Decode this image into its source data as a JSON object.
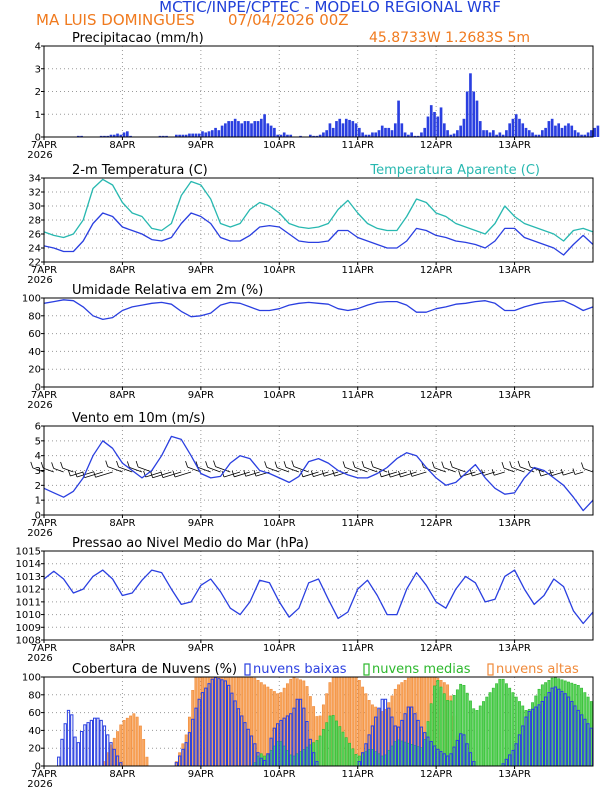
{
  "header": {
    "title": "MCTIC/INPE/CPTEC - MODELO REGIONAL WRF",
    "location": "MA LUIS DOMINGUES",
    "date": "07/04/2026 00Z",
    "coords": "45.8733W 1.2683S 5m"
  },
  "colors": {
    "blue": "#2a3fe0",
    "teal": "#28b8b0",
    "orange": "#f08a3a",
    "green": "#2db82d",
    "black": "#000000"
  },
  "x_axis": {
    "labels": [
      "7APR",
      "8APR",
      "9APR",
      "10APR",
      "11APR",
      "12APR",
      "13APR"
    ],
    "year": "2026",
    "hours_per_day": 24,
    "total_hours": 168
  },
  "chart_data": [
    {
      "type": "bar",
      "id": "precip",
      "title": "Precipitacao (mm/h)",
      "ylim": [
        0,
        4
      ],
      "yticks": [
        0,
        1,
        2,
        3,
        4
      ],
      "unit_step_hours": 1,
      "values": [
        0,
        0,
        0,
        0,
        0,
        0,
        0,
        0,
        0,
        0,
        0.05,
        0.05,
        0,
        0,
        0,
        0,
        0,
        0.05,
        0.05,
        0.05,
        0.1,
        0.1,
        0.15,
        0.1,
        0.2,
        0.25,
        0.05,
        0,
        0,
        0,
        0,
        0,
        0,
        0,
        0,
        0.05,
        0.05,
        0.05,
        0,
        0,
        0.1,
        0.1,
        0.1,
        0.1,
        0.15,
        0.15,
        0.15,
        0.15,
        0.25,
        0.2,
        0.25,
        0.3,
        0.4,
        0.3,
        0.5,
        0.6,
        0.7,
        0.7,
        0.8,
        0.7,
        0.6,
        0.7,
        0.7,
        0.6,
        0.7,
        0.7,
        0.8,
        1,
        0.6,
        0.5,
        0.4,
        0.1,
        0.1,
        0.2,
        0.1,
        0.1,
        0,
        0,
        0.05,
        0,
        0,
        0.1,
        0.05,
        0.05,
        0.1,
        0.2,
        0.3,
        0.6,
        0.4,
        0.7,
        0.8,
        0.6,
        0.8,
        0.75,
        0.7,
        0.6,
        0.4,
        0.2,
        0.1,
        0.1,
        0.2,
        0.2,
        0.3,
        0.5,
        0.4,
        0.4,
        0.3,
        0.6,
        1.6,
        0.6,
        0.2,
        0.1,
        0.2,
        0.05,
        0.05,
        0.2,
        0.4,
        0.9,
        1.4,
        1.1,
        0.9,
        1.3,
        0.6,
        0.3,
        0.1,
        0.15,
        0.3,
        0.5,
        0.8,
        2.0,
        2.8,
        2.0,
        1.6,
        0.7,
        0.3,
        0.3,
        0.2,
        0.3,
        0.1,
        0.2,
        0.1,
        0.3,
        0.6,
        0.8,
        1.0,
        0.8,
        0.6,
        0.4,
        0.3,
        0.2,
        0.1,
        0.1,
        0.3,
        0.4,
        0.7,
        0.8,
        0.5,
        0.6,
        0.4,
        0.5,
        0.6,
        0.5,
        0.3,
        0.2,
        0.1,
        0.1,
        0.2,
        0.3,
        0.4,
        0.5
      ]
    },
    {
      "type": "line",
      "id": "temp",
      "title": "2-m Temperatura (C)",
      "subtitle": "Temperatura Aparente (C)",
      "ylim": [
        22,
        34
      ],
      "yticks": [
        22,
        24,
        26,
        28,
        30,
        32,
        34
      ],
      "series": [
        {
          "name": "Temperatura",
          "color": "blue",
          "x": [
            0,
            3,
            6,
            9,
            12,
            15,
            18,
            21,
            24,
            27,
            30,
            33,
            36,
            39,
            42,
            45,
            48,
            51,
            54,
            57,
            60,
            63,
            66,
            69,
            72,
            75,
            78,
            81,
            84,
            87,
            90,
            93,
            96,
            99,
            102,
            105,
            108,
            111,
            114,
            117,
            120,
            123,
            126,
            129,
            132,
            135,
            138,
            141,
            144,
            147,
            150,
            153,
            156,
            159,
            162,
            165,
            168
          ],
          "values": [
            24.3,
            24.0,
            23.5,
            23.5,
            25.0,
            27.5,
            29.0,
            28.5,
            27.0,
            26.5,
            26.0,
            25.2,
            25.0,
            25.5,
            27.5,
            29.0,
            28.5,
            27.5,
            25.5,
            25.0,
            25.0,
            25.8,
            27.0,
            27.2,
            27.0,
            26.0,
            25.0,
            24.8,
            24.8,
            25.0,
            26.5,
            26.5,
            25.5,
            25.0,
            24.5,
            24.0,
            24.0,
            25.0,
            26.8,
            26.5,
            25.8,
            25.5,
            25.0,
            24.8,
            24.5,
            24.0,
            25.0,
            26.8,
            26.8,
            25.5,
            25.0,
            24.5,
            24.0,
            23.0,
            24.5,
            25.8,
            24.5
          ]
        },
        {
          "name": "Temperatura Aparente",
          "color": "teal",
          "x": [
            0,
            3,
            6,
            9,
            12,
            15,
            18,
            21,
            24,
            27,
            30,
            33,
            36,
            39,
            42,
            45,
            48,
            51,
            54,
            57,
            60,
            63,
            66,
            69,
            72,
            75,
            78,
            81,
            84,
            87,
            90,
            93,
            96,
            99,
            102,
            105,
            108,
            111,
            114,
            117,
            120,
            123,
            126,
            129,
            132,
            135,
            138,
            141,
            144,
            147,
            150,
            153,
            156,
            159,
            162,
            165,
            168
          ],
          "values": [
            26.3,
            25.8,
            25.5,
            26.0,
            28.0,
            32.5,
            33.8,
            33.0,
            30.5,
            29.0,
            28.5,
            26.8,
            26.5,
            27.5,
            31.5,
            33.5,
            33.0,
            31.0,
            27.5,
            27.0,
            27.5,
            29.5,
            30.5,
            30.0,
            29.0,
            27.5,
            27.0,
            26.8,
            27.0,
            27.5,
            29.5,
            30.8,
            29.0,
            27.5,
            26.8,
            26.5,
            26.5,
            28.5,
            31.0,
            30.5,
            29.0,
            28.5,
            27.5,
            27.0,
            26.5,
            26.0,
            27.5,
            30.0,
            28.5,
            27.5,
            27.0,
            26.5,
            26.0,
            25.0,
            26.5,
            26.8,
            26.3
          ]
        }
      ]
    },
    {
      "type": "line",
      "id": "humidity",
      "title": "Umidade Relativa em 2m (%)",
      "ylim": [
        0,
        100
      ],
      "yticks": [
        0,
        20,
        40,
        60,
        80,
        100
      ],
      "series": [
        {
          "name": "Umidade",
          "color": "blue",
          "x": [
            0,
            3,
            6,
            9,
            12,
            15,
            18,
            21,
            24,
            27,
            30,
            33,
            36,
            39,
            42,
            45,
            48,
            51,
            54,
            57,
            60,
            63,
            66,
            69,
            72,
            75,
            78,
            81,
            84,
            87,
            90,
            93,
            96,
            99,
            102,
            105,
            108,
            111,
            114,
            117,
            120,
            123,
            126,
            129,
            132,
            135,
            138,
            141,
            144,
            147,
            150,
            153,
            156,
            159,
            162,
            165,
            168
          ],
          "values": [
            94,
            96,
            98,
            97,
            90,
            80,
            76,
            78,
            86,
            90,
            92,
            94,
            95,
            93,
            85,
            79,
            80,
            83,
            92,
            95,
            94,
            90,
            86,
            86,
            88,
            92,
            94,
            95,
            94,
            93,
            88,
            86,
            88,
            92,
            95,
            96,
            96,
            92,
            84,
            84,
            88,
            90,
            93,
            94,
            96,
            97,
            94,
            86,
            86,
            90,
            93,
            95,
            96,
            97,
            92,
            86,
            90
          ]
        }
      ]
    },
    {
      "type": "line",
      "id": "wind",
      "title": "Vento em 10m (m/s)",
      "ylim": [
        0,
        6
      ],
      "yticks": [
        0,
        1,
        2,
        3,
        4,
        5,
        6
      ],
      "series": [
        {
          "name": "Vento",
          "color": "blue",
          "x": [
            0,
            3,
            6,
            9,
            12,
            15,
            18,
            21,
            24,
            27,
            30,
            33,
            36,
            39,
            42,
            45,
            48,
            51,
            54,
            57,
            60,
            63,
            66,
            69,
            72,
            75,
            78,
            81,
            84,
            87,
            90,
            93,
            96,
            99,
            102,
            105,
            108,
            111,
            114,
            117,
            120,
            123,
            126,
            129,
            132,
            135,
            138,
            141,
            144,
            147,
            150,
            153,
            156,
            159,
            162,
            165,
            168
          ],
          "values": [
            1.8,
            1.5,
            1.2,
            1.6,
            2.5,
            4.0,
            5.0,
            4.5,
            3.5,
            3.0,
            2.5,
            3.0,
            4.0,
            5.3,
            5.1,
            4.0,
            2.8,
            2.5,
            2.6,
            3.5,
            4.0,
            3.8,
            3.0,
            2.8,
            2.5,
            2.2,
            2.6,
            3.6,
            3.8,
            3.5,
            3.0,
            2.7,
            2.5,
            2.5,
            2.8,
            3.2,
            3.8,
            4.2,
            4.0,
            3.2,
            2.5,
            2.0,
            2.2,
            2.8,
            3.4,
            2.5,
            1.8,
            1.4,
            1.5,
            2.5,
            3.2,
            3.0,
            2.5,
            2.0,
            1.2,
            0.3,
            1.0
          ]
        }
      ],
      "barbs_at": 3
    },
    {
      "type": "line",
      "id": "pressure",
      "title": "Pressao ao Nivel Medio do Mar (hPa)",
      "ylim": [
        1008,
        1015
      ],
      "yticks": [
        1008,
        1009,
        1010,
        1011,
        1012,
        1013,
        1014,
        1015
      ],
      "series": [
        {
          "name": "Pressao",
          "color": "blue",
          "x": [
            0,
            3,
            6,
            9,
            12,
            15,
            18,
            21,
            24,
            27,
            30,
            33,
            36,
            39,
            42,
            45,
            48,
            51,
            54,
            57,
            60,
            63,
            66,
            69,
            72,
            75,
            78,
            81,
            84,
            87,
            90,
            93,
            96,
            99,
            102,
            105,
            108,
            111,
            114,
            117,
            120,
            123,
            126,
            129,
            132,
            135,
            138,
            141,
            144,
            147,
            150,
            153,
            156,
            159,
            162,
            165,
            168
          ],
          "values": [
            1012.8,
            1013.4,
            1012.8,
            1011.7,
            1012.0,
            1013.0,
            1013.5,
            1012.8,
            1011.5,
            1011.7,
            1012.7,
            1013.5,
            1013.3,
            1012.0,
            1010.8,
            1011.0,
            1012.3,
            1012.8,
            1011.8,
            1010.5,
            1010.0,
            1011.0,
            1012.7,
            1012.5,
            1011.0,
            1009.8,
            1010.5,
            1012.5,
            1012.8,
            1011.2,
            1009.7,
            1010.2,
            1012.0,
            1012.7,
            1011.5,
            1010.0,
            1010.0,
            1012.0,
            1013.3,
            1012.3,
            1011.0,
            1010.5,
            1012.0,
            1013.0,
            1012.5,
            1011.0,
            1011.2,
            1013.0,
            1013.5,
            1012.0,
            1010.8,
            1011.5,
            1012.8,
            1012.2,
            1010.3,
            1009.3,
            1010.2
          ]
        }
      ]
    },
    {
      "type": "bar",
      "id": "clouds",
      "title": "Cobertura de Nuvens (%)",
      "ylim": [
        0,
        100
      ],
      "yticks": [
        0,
        20,
        40,
        60,
        80,
        100
      ],
      "legend": [
        "nuvens baixas",
        "nuvens medias",
        "nuvens altas"
      ],
      "series_keyframes": {
        "baixas": {
          "x": [
            0,
            4,
            6,
            8,
            10,
            12,
            16,
            18,
            20,
            24,
            30,
            36,
            40,
            44,
            46,
            48,
            52,
            56,
            60,
            64,
            66,
            68,
            70,
            72,
            76,
            78,
            80,
            82,
            84,
            88,
            90,
            96,
            100,
            104,
            106,
            108,
            112,
            116,
            120,
            124,
            128,
            132,
            136,
            140,
            144,
            148,
            152,
            156,
            160,
            164,
            168
          ],
          "values": [
            0,
            0,
            40,
            70,
            20,
            45,
            55,
            50,
            30,
            0,
            0,
            0,
            0,
            30,
            60,
            80,
            100,
            95,
            60,
            30,
            10,
            5,
            40,
            50,
            60,
            80,
            60,
            20,
            0,
            0,
            0,
            0,
            40,
            80,
            60,
            40,
            70,
            40,
            20,
            10,
            40,
            0,
            0,
            0,
            20,
            60,
            70,
            90,
            80,
            60,
            40
          ]
        },
        "medias": {
          "x": [
            0,
            60,
            64,
            66,
            68,
            72,
            76,
            80,
            84,
            88,
            96,
            100,
            104,
            108,
            112,
            116,
            120,
            124,
            128,
            132,
            136,
            140,
            144,
            148,
            152,
            156,
            160,
            164,
            168
          ],
          "values": [
            0,
            0,
            0,
            15,
            10,
            30,
            10,
            20,
            30,
            60,
            10,
            20,
            10,
            30,
            25,
            20,
            100,
            70,
            95,
            60,
            80,
            100,
            80,
            60,
            90,
            100,
            95,
            90,
            70
          ]
        },
        "altas": {
          "x": [
            0,
            18,
            20,
            24,
            28,
            30,
            32,
            36,
            40,
            44,
            46,
            48,
            52,
            56,
            60,
            64,
            68,
            72,
            76,
            80,
            84,
            88,
            96,
            100,
            104,
            108,
            112,
            116,
            120,
            124,
            128,
            132,
            136,
            140,
            144,
            148,
            152,
            156,
            160,
            164,
            168
          ],
          "values": [
            0,
            0,
            20,
            50,
            60,
            40,
            0,
            0,
            0,
            40,
            100,
            100,
            100,
            100,
            100,
            100,
            90,
            80,
            100,
            95,
            50,
            100,
            100,
            70,
            60,
            90,
            100,
            100,
            100,
            90,
            0,
            0,
            0,
            0,
            0,
            0,
            0,
            0,
            0,
            0,
            0
          ]
        }
      }
    }
  ]
}
